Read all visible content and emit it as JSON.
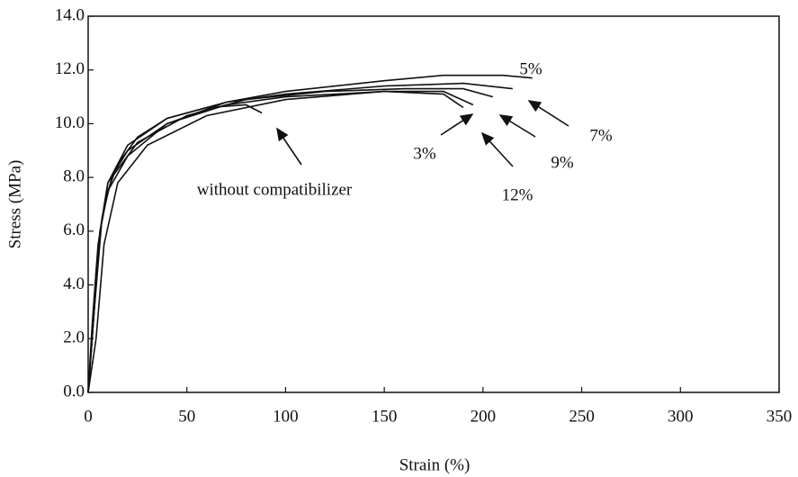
{
  "chart_data": {
    "type": "line",
    "x_label": "Strain (%)",
    "y_label": "Stress (MPa)",
    "xlim": [
      0,
      350
    ],
    "xticks": [
      0,
      50,
      100,
      150,
      200,
      250,
      300,
      350
    ],
    "ylim": [
      0,
      14
    ],
    "yticks": [
      {
        "value": 0,
        "label": "0.0"
      },
      {
        "value": 2,
        "label": "2.0"
      },
      {
        "value": 4,
        "label": "4.0"
      },
      {
        "value": 6,
        "label": "6.0"
      },
      {
        "value": 8,
        "label": "8.0"
      },
      {
        "value": 10,
        "label": "10.0"
      },
      {
        "value": 12,
        "label": "12.0"
      },
      {
        "value": 14,
        "label": "14.0"
      }
    ],
    "series": [
      {
        "name": "without compatibilizer",
        "color": "#111111",
        "x": [
          0,
          2,
          4,
          6,
          10,
          15,
          25,
          40,
          60,
          80,
          88
        ],
        "values": [
          0,
          2,
          4.5,
          6,
          7.5,
          8.5,
          9.5,
          10.2,
          10.6,
          10.7,
          10.4
        ]
      },
      {
        "name": "3%",
        "color": "#111111",
        "x": [
          0,
          3,
          6,
          10,
          20,
          40,
          70,
          100,
          150,
          180,
          190
        ],
        "values": [
          0,
          3,
          6,
          7.8,
          9,
          10,
          10.7,
          11,
          11.2,
          11.1,
          10.6
        ]
      },
      {
        "name": "5%",
        "color": "#111111",
        "x": [
          0,
          3,
          6,
          10,
          20,
          40,
          70,
          100,
          150,
          180,
          210,
          225
        ],
        "values": [
          0,
          3,
          6,
          7.5,
          8.8,
          10,
          10.8,
          11.2,
          11.6,
          11.8,
          11.8,
          11.7
        ]
      },
      {
        "name": "7%",
        "color": "#111111",
        "x": [
          0,
          2,
          5,
          10,
          20,
          40,
          70,
          100,
          150,
          190,
          215
        ],
        "values": [
          0,
          2.5,
          5.5,
          7.8,
          9.2,
          10.2,
          10.8,
          11.1,
          11.4,
          11.5,
          11.3
        ]
      },
      {
        "name": "9%",
        "color": "#111111",
        "x": [
          0,
          3,
          7,
          12,
          25,
          50,
          80,
          120,
          160,
          190,
          205
        ],
        "values": [
          0,
          3,
          6.5,
          8,
          9.3,
          10.3,
          10.9,
          11.2,
          11.3,
          11.3,
          11
        ]
      },
      {
        "name": "12%",
        "color": "#111111",
        "x": [
          0,
          4,
          8,
          15,
          30,
          60,
          100,
          150,
          180,
          195
        ],
        "values": [
          0,
          2,
          5.5,
          7.8,
          9.2,
          10.3,
          10.9,
          11.2,
          11.2,
          10.7
        ]
      }
    ]
  }
}
